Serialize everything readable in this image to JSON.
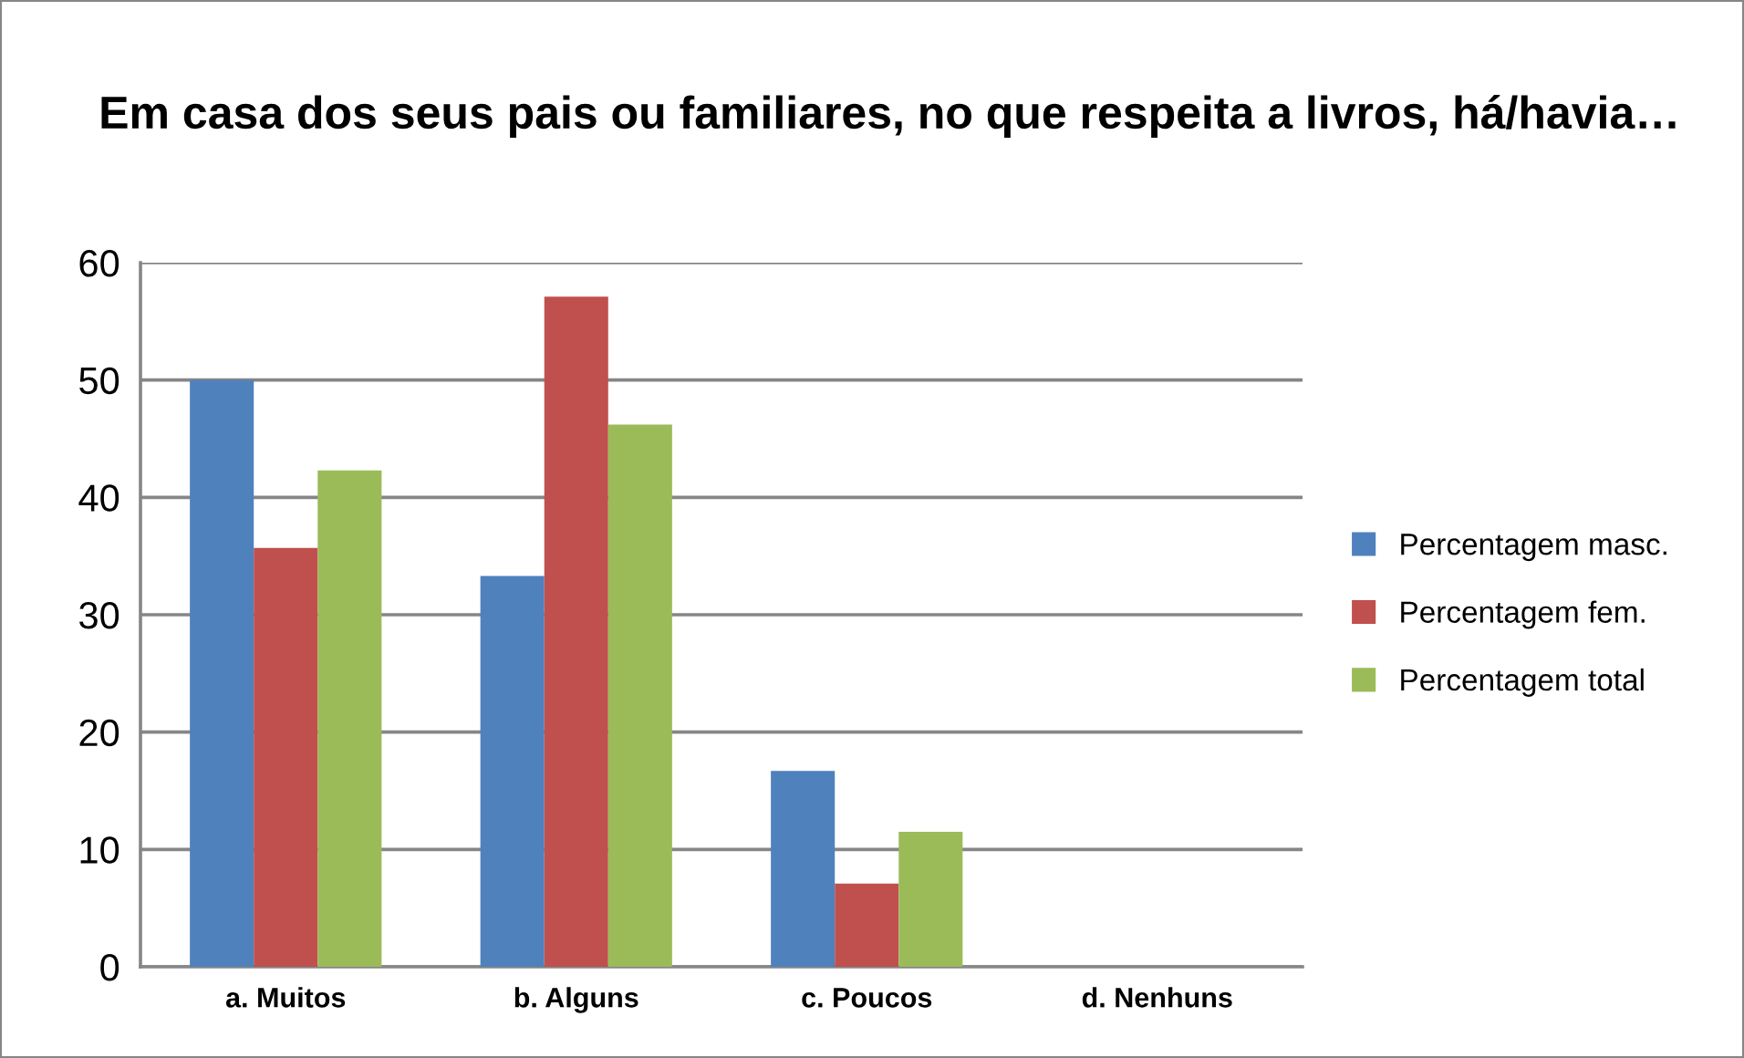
{
  "chart_data": {
    "type": "bar",
    "title": "Em casa dos seus pais ou familiares, no que respeita a livros, há/havia…",
    "categories": [
      "a. Muitos",
      "b. Alguns",
      "c. Poucos",
      "d. Nenhuns"
    ],
    "series": [
      {
        "name": "Percentagem masc.",
        "color": "#4f81bd",
        "values": [
          50,
          33.3,
          16.7,
          0
        ]
      },
      {
        "name": "Percentagem fem.",
        "color": "#c0504d",
        "values": [
          35.7,
          57.1,
          7.1,
          0
        ]
      },
      {
        "name": "Percentagem total",
        "color": "#9bbb59",
        "values": [
          42.3,
          46.2,
          11.5,
          0
        ]
      }
    ],
    "ylim": [
      0,
      60
    ],
    "yticks": [
      0,
      10,
      20,
      30,
      40,
      50,
      60
    ],
    "grid": "y",
    "legend": "right"
  }
}
